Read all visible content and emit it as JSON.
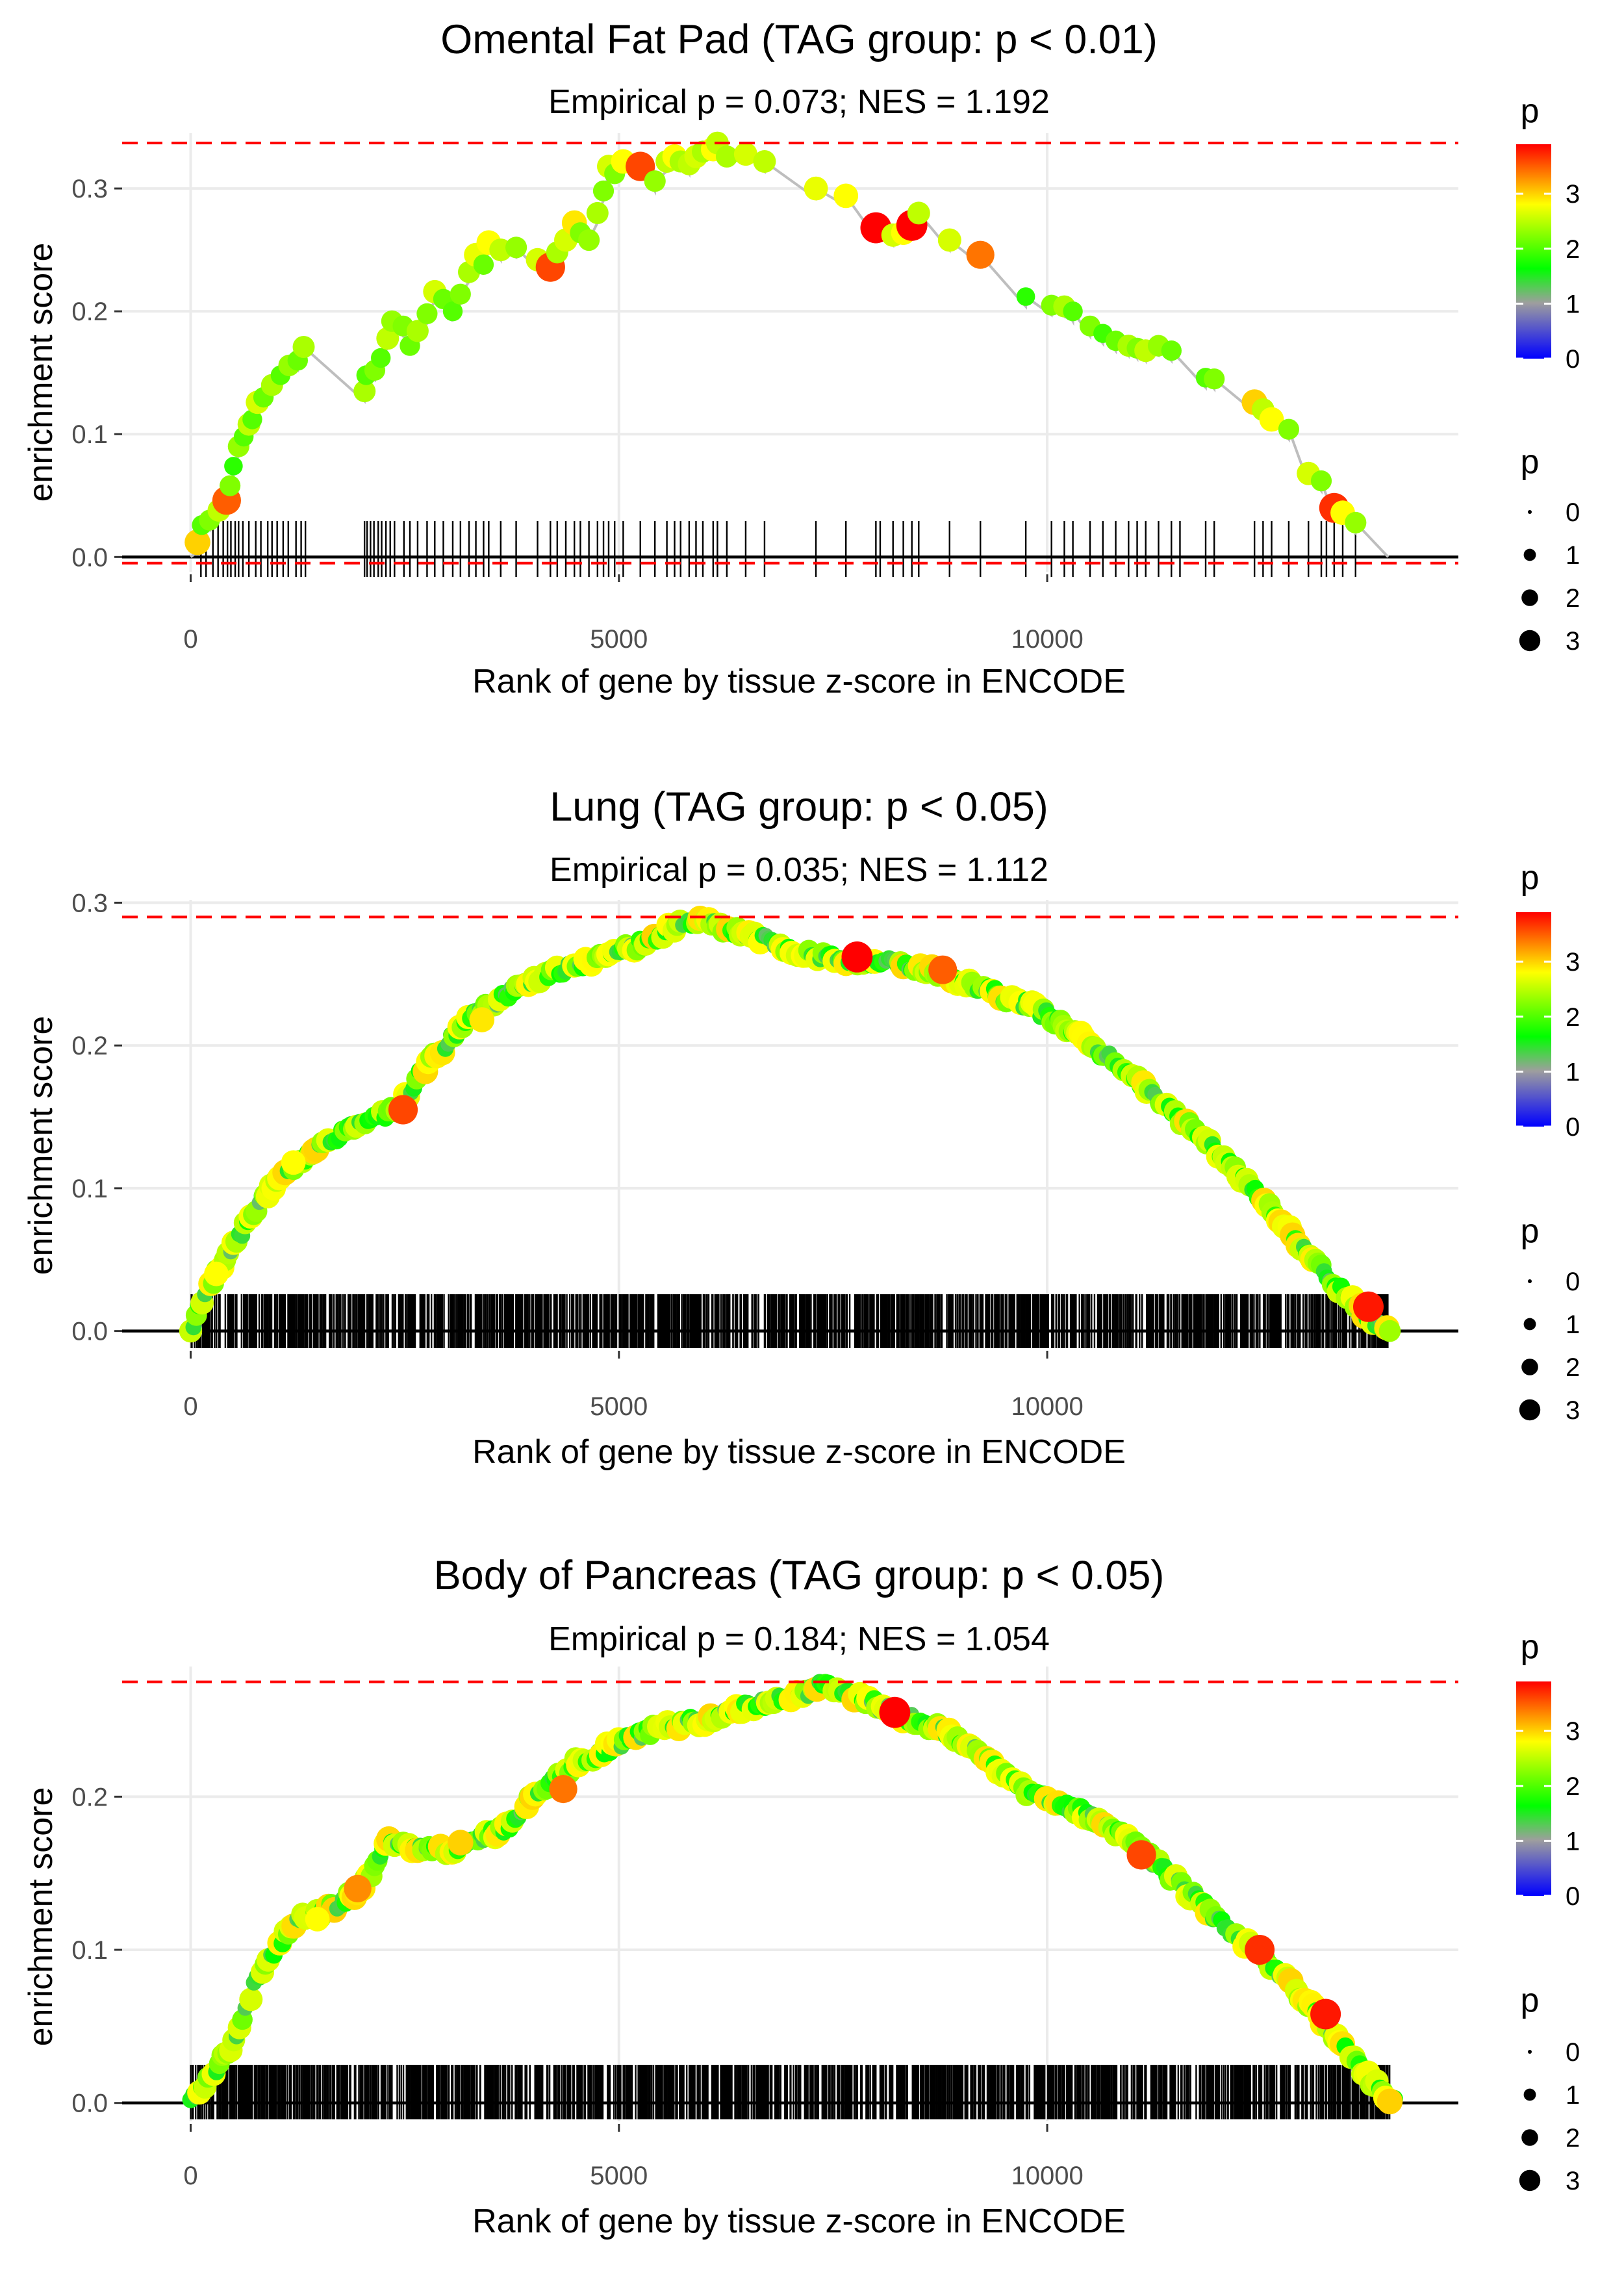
{
  "chart_data": [
    {
      "type": "scatter",
      "title": "Omental Fat Pad (TAG group: p < 0.01)",
      "subtitle": "Empirical p = 0.073; NES = 1.192",
      "xlabel": "Rank of gene by tissue z-score in ENCODE",
      "ylabel": "enrichment score",
      "xlim": [
        -800,
        14800
      ],
      "ylim": [
        -0.012,
        0.345
      ],
      "xticks": [
        0,
        5000,
        10000
      ],
      "xtick_labels": [
        "0",
        "5000",
        "10000"
      ],
      "yticks": [
        0.0,
        0.1,
        0.2,
        0.3
      ],
      "ytick_labels": [
        "0.0",
        "0.1",
        "0.2",
        "0.3"
      ],
      "ref_lines": [
        0.337,
        -0.005
      ],
      "n_genes": 14000,
      "grid": true,
      "legend_position": "right",
      "color_legend": {
        "title": "p",
        "labels": [
          "0",
          "1",
          "2",
          "3"
        ]
      },
      "size_legend": {
        "title": "p",
        "labels": [
          "0",
          "1",
          "2",
          "3"
        ]
      },
      "points": [
        [
          80,
          0.012,
          3.0
        ],
        [
          130,
          0.026,
          2.0
        ],
        [
          220,
          0.03,
          2.2
        ],
        [
          330,
          0.038,
          2.5
        ],
        [
          420,
          0.046,
          3.5
        ],
        [
          460,
          0.058,
          2.2
        ],
        [
          500,
          0.074,
          1.8
        ],
        [
          560,
          0.09,
          2.3
        ],
        [
          620,
          0.098,
          2.0
        ],
        [
          680,
          0.108,
          2.5
        ],
        [
          720,
          0.112,
          2.0
        ],
        [
          780,
          0.126,
          2.6
        ],
        [
          850,
          0.13,
          2.1
        ],
        [
          950,
          0.14,
          2.4
        ],
        [
          1050,
          0.148,
          2.0
        ],
        [
          1150,
          0.156,
          2.3
        ],
        [
          1250,
          0.16,
          2.1
        ],
        [
          1320,
          0.171,
          2.4
        ],
        [
          2030,
          0.135,
          2.4
        ],
        [
          2050,
          0.148,
          2.0
        ],
        [
          2150,
          0.152,
          2.2
        ],
        [
          2220,
          0.162,
          2.0
        ],
        [
          2300,
          0.178,
          2.5
        ],
        [
          2350,
          0.192,
          2.3
        ],
        [
          2480,
          0.188,
          2.2
        ],
        [
          2560,
          0.172,
          2.1
        ],
        [
          2650,
          0.184,
          2.4
        ],
        [
          2760,
          0.198,
          2.2
        ],
        [
          2850,
          0.216,
          2.6
        ],
        [
          2950,
          0.21,
          2.1
        ],
        [
          3060,
          0.2,
          2.0
        ],
        [
          3150,
          0.214,
          2.2
        ],
        [
          3250,
          0.232,
          2.4
        ],
        [
          3330,
          0.246,
          2.7
        ],
        [
          3420,
          0.238,
          2.1
        ],
        [
          3480,
          0.256,
          2.8
        ],
        [
          3620,
          0.25,
          2.5
        ],
        [
          3800,
          0.252,
          2.3
        ],
        [
          4050,
          0.242,
          2.6
        ],
        [
          4200,
          0.236,
          3.6
        ],
        [
          4280,
          0.248,
          2.4
        ],
        [
          4380,
          0.258,
          2.6
        ],
        [
          4480,
          0.272,
          2.9
        ],
        [
          4550,
          0.264,
          2.2
        ],
        [
          4650,
          0.258,
          2.3
        ],
        [
          4750,
          0.28,
          2.4
        ],
        [
          4820,
          0.298,
          2.2
        ],
        [
          4880,
          0.318,
          2.6
        ],
        [
          4950,
          0.312,
          2.2
        ],
        [
          5050,
          0.322,
          2.8
        ],
        [
          5250,
          0.318,
          3.6
        ],
        [
          5420,
          0.306,
          2.3
        ],
        [
          5560,
          0.322,
          2.5
        ],
        [
          5650,
          0.326,
          2.8
        ],
        [
          5720,
          0.322,
          2.4
        ],
        [
          5820,
          0.32,
          2.5
        ],
        [
          5900,
          0.326,
          2.6
        ],
        [
          5980,
          0.33,
          2.4
        ],
        [
          6100,
          0.332,
          2.8
        ],
        [
          6150,
          0.337,
          2.5
        ],
        [
          6260,
          0.326,
          2.4
        ],
        [
          6480,
          0.328,
          2.6
        ],
        [
          6700,
          0.322,
          2.5
        ],
        [
          7300,
          0.3,
          2.7
        ],
        [
          7650,
          0.294,
          2.8
        ],
        [
          8000,
          0.268,
          3.9
        ],
        [
          8200,
          0.262,
          2.6
        ],
        [
          8320,
          0.264,
          2.8
        ],
        [
          8420,
          0.27,
          3.9
        ],
        [
          8500,
          0.28,
          2.5
        ],
        [
          8860,
          0.258,
          2.6
        ],
        [
          9220,
          0.246,
          3.4
        ],
        [
          9750,
          0.212,
          1.8
        ],
        [
          10050,
          0.205,
          2.2
        ],
        [
          10200,
          0.204,
          2.4
        ],
        [
          10300,
          0.2,
          2.0
        ],
        [
          10500,
          0.188,
          2.2
        ],
        [
          10650,
          0.182,
          1.9
        ],
        [
          10800,
          0.176,
          2.1
        ],
        [
          10950,
          0.172,
          2.4
        ],
        [
          11050,
          0.17,
          2.2
        ],
        [
          11150,
          0.168,
          2.5
        ],
        [
          11300,
          0.172,
          2.3
        ],
        [
          11450,
          0.168,
          2.1
        ],
        [
          11850,
          0.146,
          2.0
        ],
        [
          11950,
          0.145,
          2.2
        ],
        [
          12420,
          0.126,
          3.0
        ],
        [
          12520,
          0.12,
          2.5
        ],
        [
          12620,
          0.112,
          2.8
        ],
        [
          12820,
          0.104,
          2.2
        ],
        [
          13050,
          0.068,
          2.6
        ],
        [
          13200,
          0.062,
          2.2
        ],
        [
          13350,
          0.04,
          3.7
        ],
        [
          13450,
          0.036,
          2.8
        ],
        [
          13600,
          0.028,
          2.3
        ]
      ],
      "rug": [
        120,
        180,
        260,
        320,
        380,
        430,
        470,
        520,
        560,
        610,
        680,
        760,
        820,
        900,
        950,
        1010,
        1080,
        1140,
        1230,
        1290,
        1340,
        2030,
        2060,
        2100,
        2140,
        2190,
        2230,
        2280,
        2330,
        2380,
        2490,
        2560,
        2650,
        2760,
        2850,
        2950,
        3060,
        3150,
        3250,
        3330,
        3420,
        3480,
        3620,
        3800,
        4050,
        4200,
        4280,
        4380,
        4480,
        4550,
        4650,
        4750,
        4820,
        4880,
        4950,
        5050,
        5250,
        5420,
        5560,
        5650,
        5720,
        5820,
        5900,
        5980,
        6100,
        6150,
        6260,
        6480,
        6700,
        7300,
        7650,
        8000,
        8050,
        8200,
        8320,
        8420,
        8500,
        8860,
        9220,
        9750,
        10050,
        10200,
        10300,
        10500,
        10650,
        10800,
        10950,
        11050,
        11150,
        11300,
        11450,
        11550,
        11850,
        11950,
        12420,
        12520,
        12620,
        12820,
        13050,
        13200,
        13260,
        13350,
        13450,
        13600
      ],
      "line_end": [
        13980,
        0.0
      ]
    },
    {
      "type": "scatter",
      "title": "Lung (TAG group: p < 0.05)",
      "subtitle": "Empirical p = 0.035; NES = 1.112",
      "xlabel": "Rank of gene by tissue z-score in ENCODE",
      "ylabel": "enrichment score",
      "xlim": [
        -800,
        14800
      ],
      "ylim": [
        -0.012,
        0.302
      ],
      "xticks": [
        0,
        5000,
        10000
      ],
      "xtick_labels": [
        "0",
        "5000",
        "10000"
      ],
      "yticks": [
        0.0,
        0.1,
        0.2,
        0.3
      ],
      "ytick_labels": [
        "0.0",
        "0.1",
        "0.2",
        "0.3"
      ],
      "ref_lines": [
        0.29
      ],
      "n_genes": 14000,
      "grid": true,
      "legend_position": "right",
      "color_legend": {
        "title": "p",
        "labels": [
          "0",
          "1",
          "2",
          "3"
        ]
      },
      "size_legend": {
        "title": "p",
        "labels": [
          "0",
          "1",
          "2",
          "3"
        ]
      },
      "curve": [
        [
          0,
          0.0
        ],
        [
          200,
          0.03
        ],
        [
          500,
          0.06
        ],
        [
          800,
          0.09
        ],
        [
          1200,
          0.115
        ],
        [
          1600,
          0.133
        ],
        [
          2000,
          0.145
        ],
        [
          2400,
          0.155
        ],
        [
          2800,
          0.19
        ],
        [
          3300,
          0.22
        ],
        [
          3800,
          0.24
        ],
        [
          4300,
          0.252
        ],
        [
          4800,
          0.262
        ],
        [
          5300,
          0.272
        ],
        [
          5800,
          0.288
        ],
        [
          6300,
          0.282
        ],
        [
          6800,
          0.272
        ],
        [
          7300,
          0.262
        ],
        [
          7800,
          0.26
        ],
        [
          8300,
          0.258
        ],
        [
          8800,
          0.25
        ],
        [
          9300,
          0.238
        ],
        [
          9800,
          0.228
        ],
        [
          10300,
          0.21
        ],
        [
          10800,
          0.188
        ],
        [
          11300,
          0.162
        ],
        [
          11800,
          0.136
        ],
        [
          12300,
          0.106
        ],
        [
          12800,
          0.072
        ],
        [
          13300,
          0.036
        ],
        [
          13800,
          0.008
        ],
        [
          14000,
          0.0
        ]
      ],
      "highlights": [
        [
          7780,
          0.262,
          3.9
        ],
        [
          8780,
          0.253,
          3.5
        ],
        [
          2480,
          0.155,
          3.6
        ],
        [
          13750,
          0.017,
          3.8
        ],
        [
          300,
          0.04,
          2.8
        ],
        [
          1200,
          0.118,
          2.8
        ],
        [
          3400,
          0.218,
          2.9
        ]
      ],
      "n_points": 420,
      "n_rug": 1300
    },
    {
      "type": "scatter",
      "title": "Body of Pancreas (TAG group: p < 0.05)",
      "subtitle": "Empirical p = 0.184; NES = 1.054",
      "xlabel": "Rank of gene by tissue z-score in ENCODE",
      "ylabel": "enrichment score",
      "xlim": [
        -800,
        14800
      ],
      "ylim": [
        -0.012,
        0.285
      ],
      "xticks": [
        0,
        5000,
        10000
      ],
      "xtick_labels": [
        "0",
        "5000",
        "10000"
      ],
      "yticks": [
        0.0,
        0.1,
        0.2
      ],
      "ytick_labels": [
        "0.0",
        "0.1",
        "0.2"
      ],
      "ref_lines": [
        0.275
      ],
      "n_genes": 14050,
      "grid": true,
      "legend_position": "right",
      "color_legend": {
        "title": "p",
        "labels": [
          "0",
          "1",
          "2",
          "3"
        ]
      },
      "size_legend": {
        "title": "p",
        "labels": [
          "0",
          "1",
          "2",
          "3"
        ]
      },
      "curve": [
        [
          0,
          0.0
        ],
        [
          200,
          0.015
        ],
        [
          500,
          0.04
        ],
        [
          800,
          0.085
        ],
        [
          1200,
          0.118
        ],
        [
          1600,
          0.125
        ],
        [
          2000,
          0.14
        ],
        [
          2300,
          0.17
        ],
        [
          2600,
          0.168
        ],
        [
          3000,
          0.165
        ],
        [
          3300,
          0.17
        ],
        [
          3700,
          0.18
        ],
        [
          4000,
          0.2
        ],
        [
          4500,
          0.222
        ],
        [
          5000,
          0.235
        ],
        [
          5500,
          0.245
        ],
        [
          6000,
          0.25
        ],
        [
          6500,
          0.258
        ],
        [
          7000,
          0.265
        ],
        [
          7400,
          0.273
        ],
        [
          7800,
          0.265
        ],
        [
          8200,
          0.255
        ],
        [
          8700,
          0.245
        ],
        [
          9200,
          0.23
        ],
        [
          9700,
          0.205
        ],
        [
          10200,
          0.195
        ],
        [
          10700,
          0.182
        ],
        [
          11200,
          0.16
        ],
        [
          11700,
          0.135
        ],
        [
          12200,
          0.11
        ],
        [
          12700,
          0.085
        ],
        [
          13200,
          0.055
        ],
        [
          13600,
          0.025
        ],
        [
          14050,
          0.0
        ]
      ],
      "highlights": [
        [
          8220,
          0.255,
          3.9
        ],
        [
          1950,
          0.14,
          3.3
        ],
        [
          3150,
          0.17,
          3.0
        ],
        [
          4350,
          0.205,
          3.4
        ],
        [
          11100,
          0.162,
          3.6
        ],
        [
          12480,
          0.1,
          3.7
        ],
        [
          13250,
          0.058,
          3.8
        ],
        [
          14000,
          0.001,
          3.0
        ],
        [
          1480,
          0.12,
          2.8
        ]
      ],
      "n_points": 420,
      "n_rug": 1300
    }
  ]
}
